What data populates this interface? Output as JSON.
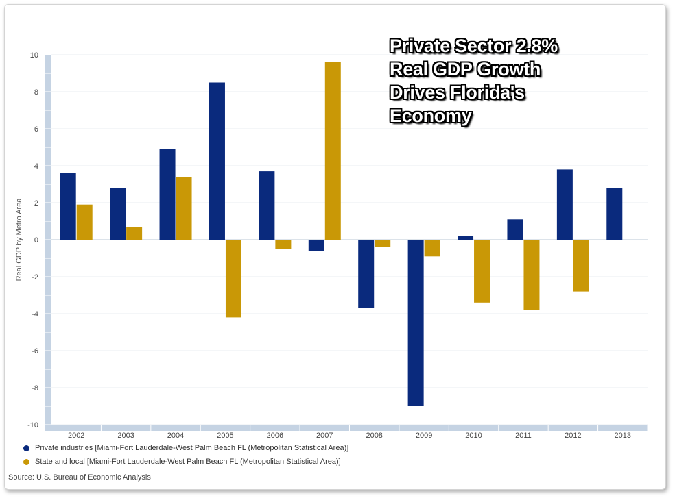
{
  "headline": {
    "line1": "Private Sector 2.8%",
    "line2": "Real GDP Growth",
    "line3": "Drives Florida's",
    "line4": "Economy"
  },
  "legend": {
    "private": "Private industries [Miami-Fort Lauderdale-West Palm Beach FL (Metropolitan Statistical Area)]",
    "state": "State and local [Miami-Fort Lauderdale-West Palm Beach FL (Metropolitan Statistical Area)]"
  },
  "source": "Source: U.S. Bureau of Economic Analysis",
  "colors": {
    "private": "#0a2a7d",
    "state": "#c99806",
    "axis_band": "#c5d3e3",
    "grid": "#e8ecf0",
    "zero_line": "#b9c7d6"
  },
  "chart_data": {
    "type": "bar",
    "ylabel": "Real GDP by Metro Area",
    "xlabel": "",
    "ylim": [
      -10,
      10
    ],
    "yticks": [
      10,
      8,
      6,
      4,
      2,
      0,
      -2,
      -4,
      -6,
      -8,
      -10
    ],
    "grid": true,
    "legend_position": "bottom-left",
    "categories": [
      "2002",
      "2003",
      "2004",
      "2005",
      "2006",
      "2007",
      "2008",
      "2009",
      "2010",
      "2011",
      "2012",
      "2013"
    ],
    "series": [
      {
        "name": "Private industries [Miami-Fort Lauderdale-West Palm Beach FL (Metropolitan Statistical Area)]",
        "color": "#0a2a7d",
        "values": [
          3.6,
          2.8,
          4.9,
          8.5,
          3.7,
          -0.6,
          -3.7,
          -9.0,
          0.2,
          1.1,
          3.8,
          2.8
        ]
      },
      {
        "name": "State and local [Miami-Fort Lauderdale-West Palm Beach FL (Metropolitan Statistical Area)]",
        "color": "#c99806",
        "values": [
          1.9,
          0.7,
          3.4,
          -4.2,
          -0.5,
          9.6,
          -0.4,
          -0.9,
          -3.4,
          -3.8,
          -2.8,
          null
        ]
      }
    ]
  }
}
